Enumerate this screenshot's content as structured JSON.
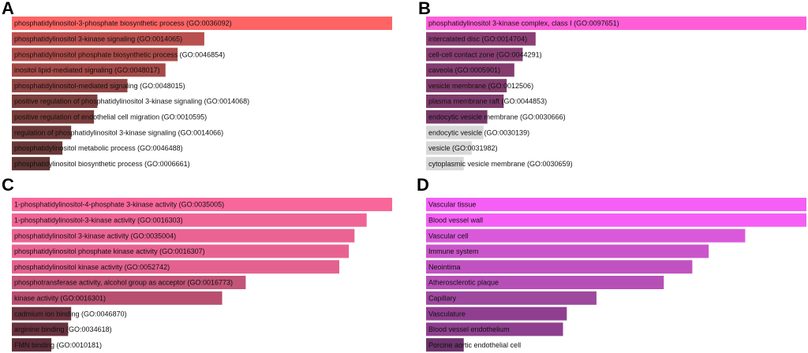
{
  "chart_data": [
    {
      "type": "bar",
      "panel": "A",
      "orientation": "horizontal",
      "title": "",
      "xlabel": "",
      "ylabel": "",
      "categories": [
        "phosphatidylinositol-3-phosphate biosynthetic process (GO:0036092)",
        "phosphatidylinositol 3-kinase signaling (GO:0014065)",
        "phosphatidylinositol phosphate biosynthetic process (GO:0046854)",
        "inositol lipid-mediated signaling (GO:0048017)",
        "phosphatidylinositol-mediated signaling (GO:0048015)",
        "positive regulation of phosphatidylinositol 3-kinase signaling (GO:0014068)",
        "positive regulation of endothelial cell migration (GO:0010595)",
        "regulation of phosphatidylinositol 3-kinase signaling (GO:0014066)",
        "phosphatidylinositol metabolic process (GO:0046488)",
        "phosphatidylinositol biosynthetic process (GO:0006661)"
      ],
      "values": [
        100,
        50.6,
        43.6,
        40.4,
        30.4,
        22.5,
        21.6,
        15.6,
        13.3,
        10.0
      ],
      "colors": [
        "#ff6464",
        "#b8504e",
        "#ad4c4a",
        "#a44947",
        "#8f4342",
        "#7c3e3c",
        "#793c3b",
        "#6d3938",
        "#683837",
        "#613635"
      ]
    },
    {
      "type": "bar",
      "panel": "B",
      "orientation": "horizontal",
      "title": "",
      "xlabel": "",
      "ylabel": "",
      "categories": [
        "phosphatidylinositol 3-kinase complex, class I (GO:0097651)",
        "intercalated disc (GO:0014704)",
        "cell-cell contact zone (GO:0044291)",
        "caveola (GO:0005901)",
        "vesicle membrane (GO:0012506)",
        "plasma membrane raft (GO:0044853)",
        "endocytic vesicle membrane (GO:0030666)",
        "endocytic vesicle (GO:0030139)",
        "vesicle (GO:0031982)",
        "cytoplasmic vesicle membrane (GO:0030659)"
      ],
      "values": [
        100,
        28.8,
        25.4,
        23.2,
        21.2,
        20.4,
        16.1,
        15.1,
        12.0,
        9.9
      ],
      "colors": [
        "#ff5ed8",
        "#8c3f75",
        "#883d72",
        "#843c6f",
        "#803b6c",
        "#7e3a6b",
        "#763868",
        "#d8d8d8",
        "#d8d8d8",
        "#d8d8d8"
      ]
    },
    {
      "type": "bar",
      "panel": "C",
      "orientation": "horizontal",
      "title": "",
      "xlabel": "",
      "ylabel": "",
      "categories": [
        "1-phosphatidylinositol-4-phosphate 3-kinase activity (GO:0035005)",
        "1-phosphatidylinositol-3-kinase activity (GO:0016303)",
        "phosphatidylinositol 3-kinase activity (GO:0035004)",
        "phosphatidylinositol phosphate kinase activity (GO:0016307)",
        "phosphatidylinositol kinase activity (GO:0052742)",
        "phosphotransferase activity, alcohol group as acceptor (GO:0016773)",
        "kinase activity (GO:0016301)",
        "cadmium ion binding (GO:0046870)",
        "arginine binding (GO:0034618)",
        "FMN binding (GO:0010181)"
      ],
      "values": [
        100,
        93.3,
        90.1,
        88.6,
        86.1,
        61.5,
        55.3,
        15.6,
        14.8,
        10.4
      ],
      "colors": [
        "#f9679a",
        "#ef6596",
        "#ea6393",
        "#e86291",
        "#e4618f",
        "#c35579",
        "#b84f71",
        "#6b3240",
        "#69313e",
        "#5f2e3a"
      ]
    },
    {
      "type": "bar",
      "panel": "D",
      "orientation": "horizontal",
      "title": "",
      "xlabel": "",
      "ylabel": "",
      "categories": [
        "Vascular tissue",
        "Blood vessel wall",
        "Vascular cell",
        "Immune system",
        "Neointima",
        "Atherosclerotic plaque",
        "Capillary",
        "Vasculature",
        "Blood vessel endothelium",
        "Porcine aortic endothelial cell"
      ],
      "values": [
        100,
        100,
        83.9,
        74.3,
        70.0,
        62.5,
        44.8,
        37.0,
        36.0,
        9.9
      ],
      "colors": [
        "#f55ff5",
        "#f55ff5",
        "#da59da",
        "#ca55ca",
        "#c152c1",
        "#b650b6",
        "#9e489e",
        "#903f90",
        "#8e3f8e",
        "#6c336c"
      ]
    }
  ]
}
